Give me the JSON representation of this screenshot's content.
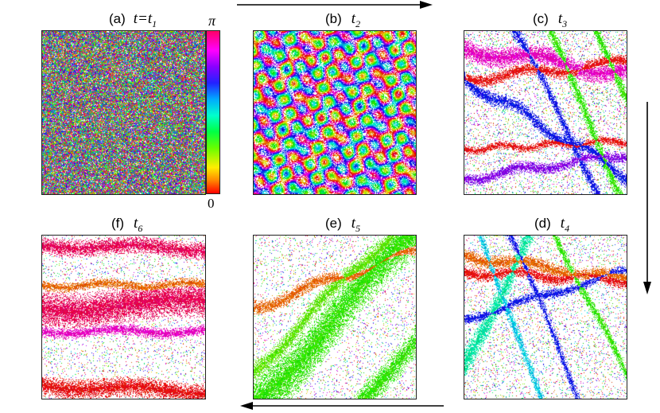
{
  "panels": [
    {
      "letter": "(a)",
      "time_prefix": "t=",
      "time_sym": "t",
      "time_sub": "1",
      "pattern": "random"
    },
    {
      "letter": "(b)",
      "time_prefix": "",
      "time_sym": "t",
      "time_sub": "2",
      "pattern": "small-domains"
    },
    {
      "letter": "(c)",
      "time_prefix": "",
      "time_sym": "t",
      "time_sub": "3",
      "pattern": "diagonal-bands"
    },
    {
      "letter": "(d)",
      "time_prefix": "",
      "time_sym": "t",
      "time_sub": "4",
      "pattern": "green-blue-red-bands"
    },
    {
      "letter": "(e)",
      "time_prefix": "",
      "time_sym": "t",
      "time_sub": "5",
      "pattern": "green-diagonal"
    },
    {
      "letter": "(f)",
      "time_prefix": "",
      "time_sym": "t",
      "time_sub": "6",
      "pattern": "red-horizontal"
    }
  ],
  "colorbar": {
    "max_label": "π",
    "min_label": "0",
    "colormap": "hsv-phase"
  },
  "colors": {
    "frame": "#222222",
    "arrow": "#000000"
  }
}
